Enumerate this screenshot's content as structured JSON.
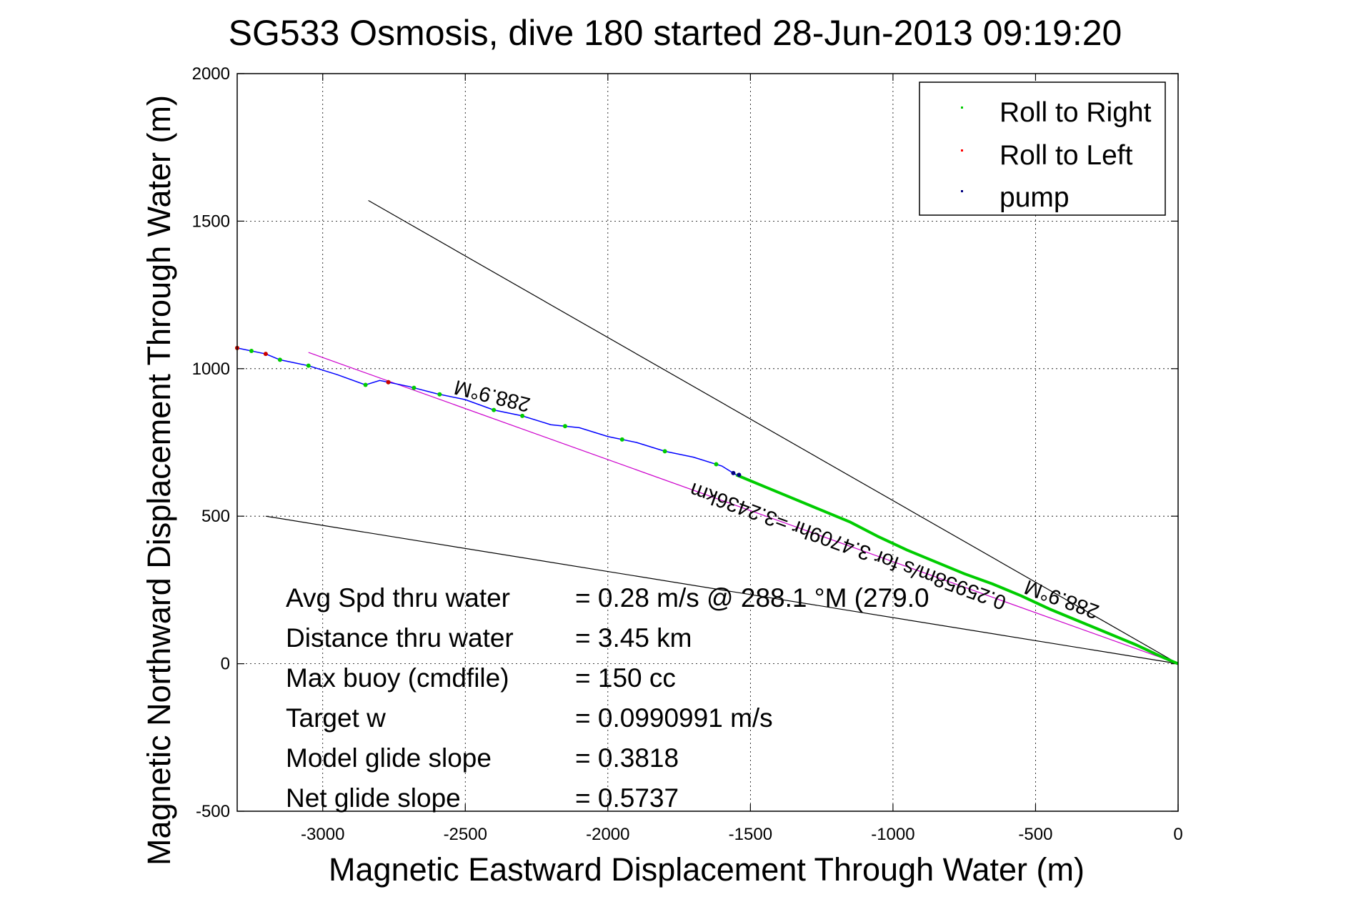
{
  "chart_data": {
    "type": "scatter",
    "title": "SG533 Osmosis, dive 180 started 28-Jun-2013 09:19:20",
    "xlabel": "Magnetic Eastward Displacement Through Water (m)",
    "ylabel": "Magnetic Northward Displacement Through Water (m)",
    "xlim": [
      -3300,
      0
    ],
    "ylim": [
      -500,
      2000
    ],
    "xticks": [
      -3000,
      -2500,
      -2000,
      -1500,
      -1000,
      -500,
      0
    ],
    "yticks": [
      -500,
      0,
      500,
      1000,
      1500,
      2000
    ],
    "grid": true,
    "legend_position": "top-right",
    "legend": [
      {
        "label": "Roll to Right",
        "color": "#00cc00"
      },
      {
        "label": "Roll to Left",
        "color": "#ff0000"
      },
      {
        "label": "pump",
        "color": "#000080"
      }
    ],
    "track": {
      "name": "glider track",
      "color": "#0000ff",
      "x": [
        -3300,
        -3200,
        -3150,
        -3050,
        -2950,
        -2850,
        -2800,
        -2700,
        -2600,
        -2500,
        -2400,
        -2300,
        -2200,
        -2100,
        -2000,
        -1900,
        -1800,
        -1700,
        -1600,
        -1550
      ],
      "y": [
        1070,
        1050,
        1030,
        1010,
        980,
        945,
        960,
        940,
        915,
        895,
        860,
        840,
        810,
        800,
        770,
        750,
        720,
        700,
        670,
        640
      ]
    },
    "green_track": {
      "name": "Roll to Right",
      "color": "#00cc00",
      "x": [
        -1550,
        -1450,
        -1350,
        -1250,
        -1150,
        -1050,
        -950,
        -850,
        -750,
        -650,
        -550,
        -450,
        -350,
        -250,
        -150,
        -50,
        0
      ],
      "y": [
        640,
        600,
        560,
        520,
        480,
        430,
        385,
        345,
        305,
        270,
        230,
        185,
        145,
        105,
        65,
        20,
        0
      ]
    },
    "track_marker_x": [
      -3300,
      -3250,
      -3150,
      -3050,
      -2850,
      -2770,
      -2680,
      -2590,
      -2400,
      -2300,
      -2150,
      -1950,
      -1800,
      -1620
    ],
    "roll_left_x": [
      -3300,
      -3200,
      -2770
    ],
    "pump_x": [
      -1560,
      -1540
    ],
    "lines": [
      {
        "name": "heading-line-upper",
        "color": "#000000",
        "x": [
          -2840,
          0
        ],
        "y": [
          1570,
          0
        ]
      },
      {
        "name": "heading-line-lower",
        "color": "#000000",
        "x": [
          -3200,
          0
        ],
        "y": [
          500,
          0
        ]
      },
      {
        "name": "magenta-heading-line",
        "color": "#cc00cc",
        "x": [
          -3050,
          0
        ],
        "y": [
          1055,
          0
        ]
      }
    ],
    "annotations": [
      {
        "text": "288.9°M",
        "x": -2400,
        "y": 930,
        "rotate": 194,
        "size": 29
      },
      {
        "text": "0.25958m/s for 3.4709hr =3.2436km",
        "x": -1150,
        "y": 420,
        "rotate": 200,
        "size": 29
      },
      {
        "text": "288.9°M",
        "x": -400,
        "y": 240,
        "rotate": 200,
        "size": 29
      }
    ],
    "stats": [
      {
        "label": "Avg Spd thru water",
        "value": "=  0.28 m/s @ 288.1 °M (279.0"
      },
      {
        "label": "Distance thru water",
        "value": "=  3.45 km"
      },
      {
        "label": "Max buoy (cmdfile)",
        "value": "= 150 cc"
      },
      {
        "label": "Target w",
        "value": "= 0.0990991 m/s"
      },
      {
        "label": "Model glide slope",
        "value": "= 0.3818"
      },
      {
        "label": "Net glide slope",
        "value": "= 0.5737"
      }
    ]
  }
}
